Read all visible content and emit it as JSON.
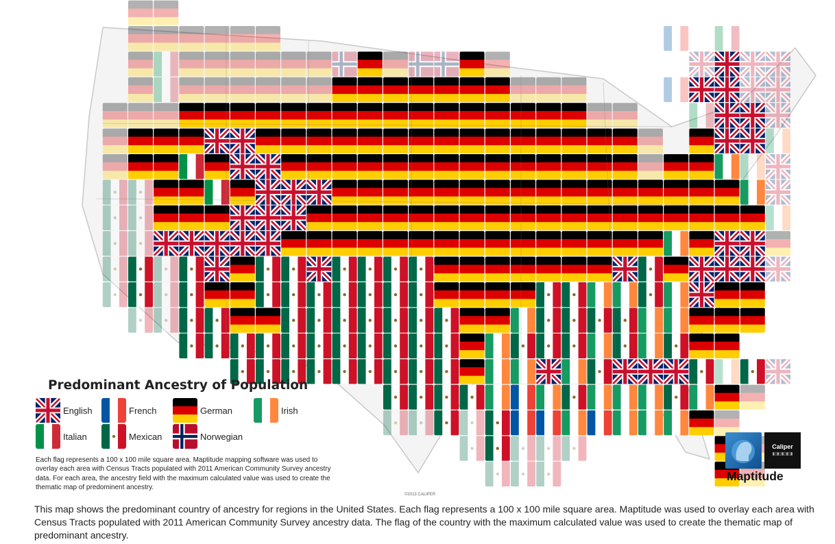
{
  "legend": {
    "title": "Predominant Ancestry of Population",
    "items": [
      {
        "key": "english",
        "label": "English"
      },
      {
        "key": "french",
        "label": "French"
      },
      {
        "key": "german",
        "label": "German"
      },
      {
        "key": "irish",
        "label": "Irish"
      },
      {
        "key": "italian",
        "label": "Italian"
      },
      {
        "key": "mexican",
        "label": "Mexican"
      },
      {
        "key": "norwegian",
        "label": "Norwegian"
      }
    ],
    "note": "Each flag represents a 100 x 100 mile square area. Maptitude mapping software was used to overlay each area with Census Tracts populated with 2011 American Community Survey ancestry data. For each area, the ancestry field with the maximum calculated value was used to create the thematic map of predominent ancestry."
  },
  "colors": {
    "german": [
      "#000000",
      "#dd0000",
      "#ffce00"
    ],
    "mexican": [
      "#006847",
      "#ffffff",
      "#ce1126"
    ],
    "italian": [
      "#009246",
      "#ffffff",
      "#ce2b37"
    ],
    "irish": [
      "#169b62",
      "#ffffff",
      "#ff883e"
    ],
    "french": [
      "#0055a4",
      "#ffffff",
      "#ef4135"
    ],
    "english_blue": "#012169",
    "english_red": "#c8102e",
    "norwegian_red": "#ba0c2f",
    "norwegian_blue": "#00205b"
  },
  "logo": {
    "brand": "Caliper",
    "name": "Maptitude"
  },
  "copyright": "©2013 CALIPER",
  "caption": "This map shows the predominant country of ancestry for regions in the United States. Each flag represents a 100 x 100 mile square area. Maptitude was used to overlay each area with Census Tracts populated with 2011 American Community Survey ancestry data. The flag of the country with the maximum calculated value was used to create the thematic map of predominant ancestry.",
  "map_grid": {
    "cols": 28,
    "rows": 19,
    "codes": "G=German, M=Mexican, I=Italian, R=Irish, F=French, E=English, N=Norwegian, lowercase=faded edge cell",
    "cells": [
      "..gg........................",
      "..gggggg...............f.i..",
      "..giggggggnGgnnGg.......eEee",
      "..giggggggGGGGGGGggg...fEEee",
      ".gggGGGGGGGGGGGGGGGGgg..iEEe",
      ".gGGGEEGGGGGGGGGGGGGGGg.GEEr",
      ".gGGIGEEGGGGGGGGGGGGGGgGGRre",
      ".mmGGIGEEEGGGGGGGGGGGGGGGGRe",
      ".mmGGGEEEGGGGGGGGGGGGGGGGGGr",
      ".mmEEEEEGGGGGGGGGGGGGGGRGEEg",
      ".mMmMEGMMEMMMMGGGGGGGEMGEEEe",
      ".mMmMGGMMMMMMMGGGGMMRRMREGG.",
      "..mmMMGGMMMMMMMGGRMMMMRRGGG.",
      "....MMMMMMMMMMMGRMMMRMRMGG..",
      "......MMMMMMMMMGRRERMEEEMrMe",
      "............MMMMRFRMRRRMRGg.",
      "............mmMmMFFRFRRRGg..",
      "...............mMmmm.....Gg.",
      "................mmm......Gg."
    ]
  }
}
